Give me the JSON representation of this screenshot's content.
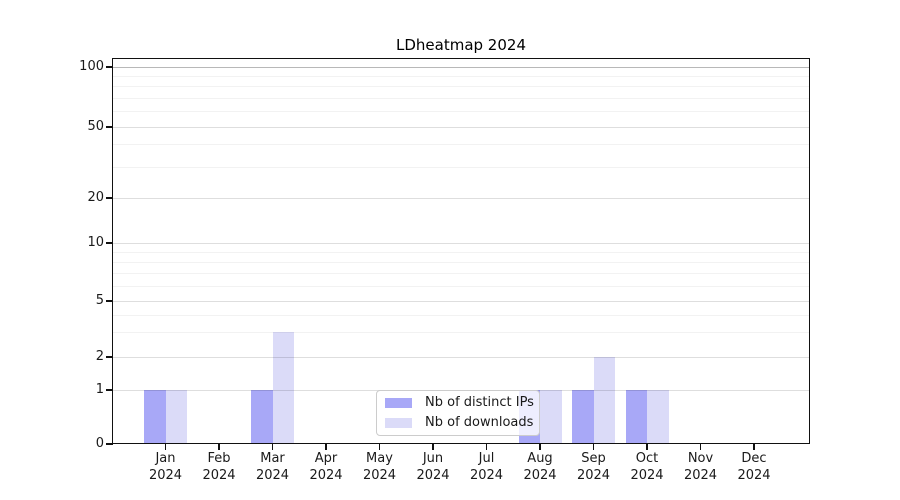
{
  "chart_data": {
    "type": "bar",
    "title": "LDheatmap 2024",
    "categories": [
      "Jan 2024",
      "Feb 2024",
      "Mar 2024",
      "Apr 2024",
      "May 2024",
      "Jun 2024",
      "Jul 2024",
      "Aug 2024",
      "Sep 2024",
      "Oct 2024",
      "Nov 2024",
      "Dec 2024"
    ],
    "series": [
      {
        "name": "Nb of distinct IPs",
        "color": "#a8a8f7",
        "values": [
          1,
          0,
          1,
          0,
          0,
          0,
          0,
          1,
          1,
          1,
          0,
          0
        ]
      },
      {
        "name": "Nb of downloads",
        "color": "#dbdbf8",
        "values": [
          1,
          0,
          3,
          0,
          0,
          0,
          0,
          1,
          2,
          1,
          0,
          0
        ]
      }
    ],
    "xlabel": "",
    "ylabel": "",
    "y_scale": "symlog",
    "y_ticks": [
      0,
      1,
      2,
      5,
      10,
      20,
      50,
      100
    ],
    "y_minor_ticks": [
      3,
      4,
      6,
      7,
      8,
      9,
      30,
      40,
      60,
      70,
      80,
      90
    ],
    "ylim": [
      0,
      108
    ],
    "grid": true,
    "legend_position": "inside-bottom-center"
  },
  "colors": {
    "grid_major": "rgba(0,0,0,0.13)",
    "grid_minor": "rgba(0,0,0,0.05)",
    "grid_top": "rgba(0,0,0,0.28)",
    "axis": "#111111",
    "text": "#1a1a1a",
    "legend_border": "#cccccc"
  }
}
